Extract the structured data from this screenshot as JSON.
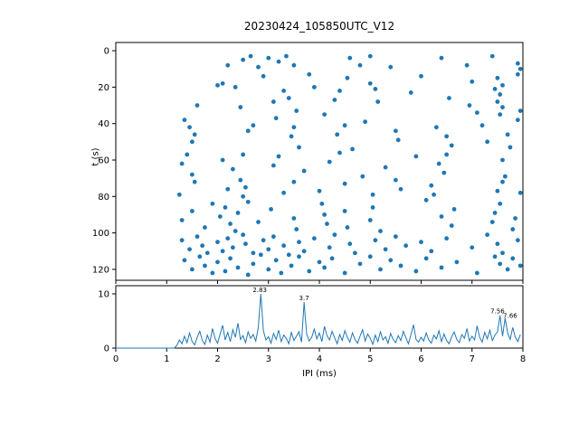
{
  "figure": {
    "title": "20230424_105850UTC_V12",
    "accent_color": "#1f77b4",
    "axis_color": "#000000",
    "background": "#ffffff"
  },
  "chart_data": [
    {
      "type": "scatter",
      "title": "20230424_105850UTC_V12",
      "xlabel": "",
      "ylabel": "t (s)",
      "xlim": [
        0,
        8
      ],
      "ylim": [
        -4.5,
        126
      ],
      "y_inverted": true,
      "xticks": [
        0,
        1,
        2,
        3,
        4,
        5,
        6,
        7,
        8
      ],
      "yticks": [
        0,
        20,
        40,
        60,
        80,
        100,
        120
      ],
      "marker_color": "#1f77b4",
      "points": [
        [
          2.2,
          8
        ],
        [
          2.5,
          5
        ],
        [
          2.8,
          9
        ],
        [
          3.0,
          4
        ],
        [
          3.2,
          6
        ],
        [
          3.35,
          3
        ],
        [
          3.5,
          8
        ],
        [
          4.6,
          4
        ],
        [
          4.8,
          8
        ],
        [
          5.0,
          3
        ],
        [
          5.4,
          9
        ],
        [
          6.4,
          4
        ],
        [
          6.9,
          8
        ],
        [
          7.4,
          3
        ],
        [
          7.9,
          7
        ],
        [
          7.95,
          10
        ],
        [
          2.65,
          3
        ],
        [
          2.0,
          19
        ],
        [
          2.1,
          18
        ],
        [
          2.35,
          20
        ],
        [
          2.9,
          14
        ],
        [
          3.3,
          22
        ],
        [
          3.8,
          13
        ],
        [
          3.9,
          20
        ],
        [
          4.4,
          22
        ],
        [
          4.55,
          15
        ],
        [
          5.0,
          18
        ],
        [
          5.1,
          21
        ],
        [
          5.8,
          23
        ],
        [
          6.0,
          14
        ],
        [
          7.0,
          17
        ],
        [
          7.45,
          21
        ],
        [
          7.5,
          15
        ],
        [
          7.55,
          24
        ],
        [
          7.6,
          19
        ],
        [
          7.9,
          13
        ],
        [
          1.35,
          38
        ],
        [
          1.6,
          30
        ],
        [
          2.45,
          31
        ],
        [
          3.1,
          28
        ],
        [
          3.15,
          37
        ],
        [
          3.4,
          26
        ],
        [
          3.55,
          33
        ],
        [
          4.1,
          35
        ],
        [
          4.3,
          27
        ],
        [
          4.9,
          39
        ],
        [
          5.15,
          28
        ],
        [
          6.55,
          26
        ],
        [
          6.95,
          30
        ],
        [
          7.1,
          34
        ],
        [
          7.5,
          28
        ],
        [
          7.55,
          35
        ],
        [
          7.6,
          31
        ],
        [
          7.95,
          33
        ],
        [
          7.9,
          38
        ],
        [
          1.45,
          42
        ],
        [
          1.5,
          50
        ],
        [
          1.55,
          46
        ],
        [
          2.6,
          44
        ],
        [
          2.7,
          41
        ],
        [
          3.45,
          47
        ],
        [
          3.5,
          42
        ],
        [
          3.6,
          53
        ],
        [
          4.35,
          46
        ],
        [
          4.5,
          41
        ],
        [
          4.65,
          54
        ],
        [
          5.5,
          44
        ],
        [
          5.55,
          49
        ],
        [
          6.3,
          42
        ],
        [
          6.5,
          47
        ],
        [
          6.6,
          52
        ],
        [
          7.2,
          41
        ],
        [
          7.3,
          50
        ],
        [
          7.7,
          46
        ],
        [
          7.75,
          53
        ],
        [
          1.3,
          62
        ],
        [
          1.4,
          57
        ],
        [
          1.5,
          68
        ],
        [
          2.1,
          60
        ],
        [
          2.3,
          65
        ],
        [
          2.5,
          57
        ],
        [
          3.1,
          63
        ],
        [
          3.2,
          58
        ],
        [
          3.7,
          66
        ],
        [
          4.2,
          61
        ],
        [
          4.4,
          56
        ],
        [
          4.85,
          69
        ],
        [
          5.3,
          64
        ],
        [
          5.9,
          58
        ],
        [
          6.35,
          62
        ],
        [
          6.45,
          67
        ],
        [
          6.5,
          57
        ],
        [
          7.6,
          60
        ],
        [
          7.65,
          69
        ],
        [
          1.25,
          79
        ],
        [
          1.55,
          72
        ],
        [
          1.9,
          84
        ],
        [
          2.2,
          76
        ],
        [
          2.45,
          71
        ],
        [
          2.5,
          80
        ],
        [
          2.55,
          75
        ],
        [
          2.6,
          83
        ],
        [
          3.3,
          78
        ],
        [
          3.5,
          72
        ],
        [
          4.0,
          77
        ],
        [
          4.05,
          84
        ],
        [
          4.5,
          73
        ],
        [
          5.05,
          79
        ],
        [
          5.5,
          71
        ],
        [
          5.6,
          76
        ],
        [
          6.1,
          82
        ],
        [
          6.2,
          74
        ],
        [
          6.25,
          79
        ],
        [
          7.5,
          77
        ],
        [
          7.55,
          84
        ],
        [
          7.6,
          72
        ],
        [
          7.95,
          78
        ],
        [
          1.3,
          93
        ],
        [
          1.5,
          88
        ],
        [
          1.75,
          97
        ],
        [
          2.05,
          91
        ],
        [
          2.15,
          86
        ],
        [
          2.25,
          95
        ],
        [
          2.35,
          99
        ],
        [
          2.4,
          89
        ],
        [
          2.8,
          94
        ],
        [
          3.05,
          87
        ],
        [
          3.5,
          92
        ],
        [
          3.55,
          98
        ],
        [
          4.1,
          90
        ],
        [
          4.15,
          95
        ],
        [
          4.5,
          88
        ],
        [
          4.55,
          97
        ],
        [
          5.0,
          93
        ],
        [
          5.05,
          86
        ],
        [
          5.2,
          99
        ],
        [
          6.4,
          91
        ],
        [
          6.6,
          96
        ],
        [
          6.65,
          87
        ],
        [
          7.4,
          94
        ],
        [
          7.45,
          89
        ],
        [
          7.8,
          98
        ],
        [
          7.85,
          92
        ],
        [
          1.3,
          104
        ],
        [
          1.45,
          109
        ],
        [
          1.6,
          102
        ],
        [
          1.7,
          107
        ],
        [
          1.8,
          111
        ],
        [
          2.0,
          105
        ],
        [
          2.1,
          110
        ],
        [
          2.2,
          103
        ],
        [
          2.3,
          108
        ],
        [
          2.5,
          101
        ],
        [
          2.55,
          106
        ],
        [
          2.7,
          111
        ],
        [
          2.9,
          104
        ],
        [
          3.0,
          109
        ],
        [
          3.1,
          102
        ],
        [
          3.3,
          107
        ],
        [
          3.4,
          112
        ],
        [
          3.6,
          105
        ],
        [
          3.7,
          110
        ],
        [
          3.9,
          103
        ],
        [
          4.2,
          108
        ],
        [
          4.3,
          101
        ],
        [
          4.6,
          106
        ],
        [
          4.7,
          111
        ],
        [
          5.1,
          104
        ],
        [
          5.3,
          109
        ],
        [
          5.5,
          102
        ],
        [
          5.7,
          107
        ],
        [
          6.0,
          105
        ],
        [
          6.2,
          110
        ],
        [
          6.5,
          103
        ],
        [
          7.0,
          108
        ],
        [
          7.3,
          101
        ],
        [
          7.5,
          106
        ],
        [
          7.6,
          111
        ],
        [
          7.9,
          104
        ],
        [
          1.35,
          115
        ],
        [
          1.5,
          120
        ],
        [
          1.65,
          113
        ],
        [
          1.75,
          118
        ],
        [
          1.9,
          122
        ],
        [
          2.0,
          116
        ],
        [
          2.15,
          121
        ],
        [
          2.25,
          114
        ],
        [
          2.4,
          119
        ],
        [
          2.6,
          123
        ],
        [
          2.7,
          117
        ],
        [
          2.85,
          112
        ],
        [
          3.0,
          120
        ],
        [
          3.15,
          115
        ],
        [
          3.25,
          122
        ],
        [
          3.45,
          118
        ],
        [
          3.6,
          113
        ],
        [
          3.8,
          121
        ],
        [
          4.0,
          116
        ],
        [
          4.1,
          119
        ],
        [
          4.25,
          114
        ],
        [
          4.5,
          122
        ],
        [
          4.8,
          117
        ],
        [
          5.0,
          113
        ],
        [
          5.2,
          120
        ],
        [
          5.4,
          115
        ],
        [
          5.6,
          118
        ],
        [
          5.9,
          121
        ],
        [
          6.1,
          114
        ],
        [
          6.4,
          119
        ],
        [
          6.7,
          116
        ],
        [
          7.1,
          122
        ],
        [
          7.45,
          113
        ],
        [
          7.55,
          117
        ],
        [
          7.7,
          120
        ],
        [
          7.8,
          114
        ],
        [
          7.95,
          118
        ]
      ]
    },
    {
      "type": "line",
      "xlabel": "IPI (ms)",
      "ylabel": "",
      "xlim": [
        0,
        8
      ],
      "ylim": [
        0,
        11.5
      ],
      "xticks": [
        0,
        1,
        2,
        3,
        4,
        5,
        6,
        7,
        8
      ],
      "yticks": [
        0,
        10
      ],
      "line_color": "#1f77b4",
      "x_start": 0,
      "x_step": 0.05,
      "values": [
        0,
        0,
        0,
        0,
        0,
        0,
        0,
        0,
        0,
        0,
        0,
        0,
        0,
        0,
        0,
        0,
        0,
        0,
        0,
        0,
        0,
        0,
        0,
        0,
        0.5,
        1.5,
        0.8,
        2.2,
        1.0,
        2.8,
        1.2,
        0.6,
        2.0,
        3.1,
        1.4,
        0.7,
        2.4,
        1.1,
        3.6,
        1.8,
        0.9,
        2.6,
        4.2,
        1.5,
        2.9,
        1.2,
        3.4,
        2.0,
        4.6,
        1.6,
        2.3,
        1.0,
        3.0,
        1.8,
        2.5,
        1.3,
        3.8,
        10.0,
        3.2,
        1.5,
        2.1,
        0.9,
        2.7,
        1.6,
        3.3,
        1.2,
        2.4,
        1.8,
        0.8,
        2.9,
        1.4,
        2.2,
        3.0,
        1.1,
        8.5,
        2.6,
        1.3,
        2.0,
        3.5,
        1.7,
        2.8,
        1.2,
        4.0,
        2.3,
        1.5,
        3.1,
        1.9,
        0.8,
        2.5,
        1.4,
        3.2,
        2.0,
        1.1,
        2.8,
        1.6,
        0.9,
        2.2,
        3.4,
        1.3,
        2.6,
        1.8,
        0.7,
        2.4,
        1.2,
        3.0,
        1.5,
        2.1,
        0.9,
        2.7,
        1.6,
        1.0,
        2.3,
        1.4,
        3.1,
        1.9,
        0.8,
        2.5,
        4.3,
        1.6,
        1.1,
        2.0,
        1.3,
        2.8,
        1.5,
        0.9,
        2.4,
        1.7,
        3.2,
        1.2,
        2.6,
        1.4,
        0.8,
        2.1,
        3.0,
        1.6,
        1.0,
        2.5,
        1.8,
        3.6,
        1.3,
        2.2,
        1.5,
        4.1,
        2.0,
        1.1,
        2.9,
        1.7,
        3.3,
        1.4,
        2.4,
        3.0,
        6.0,
        2.2,
        5.5,
        2.8,
        1.6,
        3.8,
        2.0,
        1.2,
        2.5
      ],
      "annotations": [
        {
          "x": 2.83,
          "y": 10.3,
          "label": "2.83"
        },
        {
          "x": 3.7,
          "y": 8.8,
          "label": "3.7"
        },
        {
          "x": 7.5,
          "y": 6.4,
          "label": "7.56"
        },
        {
          "x": 7.75,
          "y": 5.6,
          "label": "7.66"
        }
      ]
    }
  ]
}
